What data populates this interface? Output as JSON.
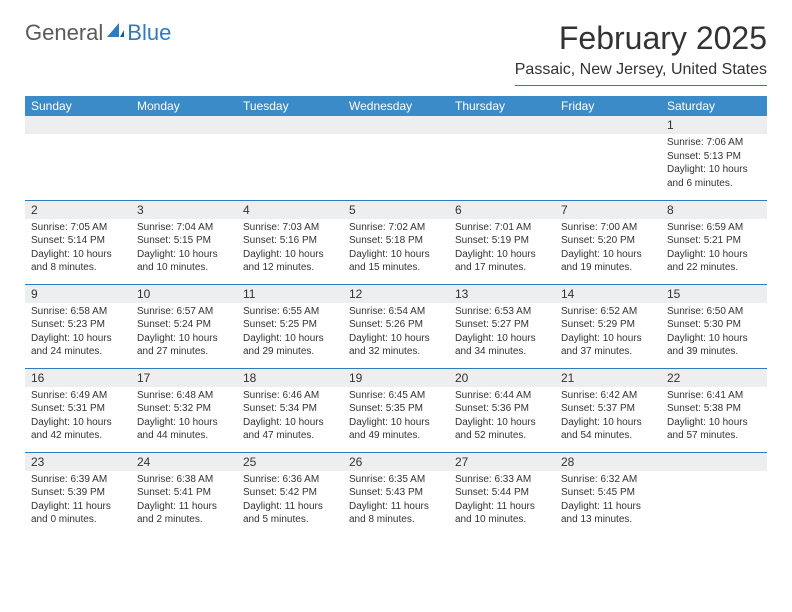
{
  "logo": {
    "text1": "General",
    "text2": "Blue"
  },
  "title": "February 2025",
  "location": "Passaic, New Jersey, United States",
  "colors": {
    "header_bg": "#3b8bc9",
    "header_text": "#ffffff",
    "rule": "#2f7bbf",
    "daynum_bg": "#eceeef",
    "text": "#333333",
    "logo_gray": "#5a5a5a",
    "logo_blue": "#2f7bbf"
  },
  "typography": {
    "title_fontsize": 32,
    "location_fontsize": 16,
    "weekday_fontsize": 12,
    "daynum_fontsize": 12,
    "body_fontsize": 10
  },
  "weekdays": [
    "Sunday",
    "Monday",
    "Tuesday",
    "Wednesday",
    "Thursday",
    "Friday",
    "Saturday"
  ],
  "weeks": [
    [
      null,
      null,
      null,
      null,
      null,
      null,
      {
        "n": "1",
        "sunrise": "7:06 AM",
        "sunset": "5:13 PM",
        "daylight": "10 hours and 6 minutes."
      }
    ],
    [
      {
        "n": "2",
        "sunrise": "7:05 AM",
        "sunset": "5:14 PM",
        "daylight": "10 hours and 8 minutes."
      },
      {
        "n": "3",
        "sunrise": "7:04 AM",
        "sunset": "5:15 PM",
        "daylight": "10 hours and 10 minutes."
      },
      {
        "n": "4",
        "sunrise": "7:03 AM",
        "sunset": "5:16 PM",
        "daylight": "10 hours and 12 minutes."
      },
      {
        "n": "5",
        "sunrise": "7:02 AM",
        "sunset": "5:18 PM",
        "daylight": "10 hours and 15 minutes."
      },
      {
        "n": "6",
        "sunrise": "7:01 AM",
        "sunset": "5:19 PM",
        "daylight": "10 hours and 17 minutes."
      },
      {
        "n": "7",
        "sunrise": "7:00 AM",
        "sunset": "5:20 PM",
        "daylight": "10 hours and 19 minutes."
      },
      {
        "n": "8",
        "sunrise": "6:59 AM",
        "sunset": "5:21 PM",
        "daylight": "10 hours and 22 minutes."
      }
    ],
    [
      {
        "n": "9",
        "sunrise": "6:58 AM",
        "sunset": "5:23 PM",
        "daylight": "10 hours and 24 minutes."
      },
      {
        "n": "10",
        "sunrise": "6:57 AM",
        "sunset": "5:24 PM",
        "daylight": "10 hours and 27 minutes."
      },
      {
        "n": "11",
        "sunrise": "6:55 AM",
        "sunset": "5:25 PM",
        "daylight": "10 hours and 29 minutes."
      },
      {
        "n": "12",
        "sunrise": "6:54 AM",
        "sunset": "5:26 PM",
        "daylight": "10 hours and 32 minutes."
      },
      {
        "n": "13",
        "sunrise": "6:53 AM",
        "sunset": "5:27 PM",
        "daylight": "10 hours and 34 minutes."
      },
      {
        "n": "14",
        "sunrise": "6:52 AM",
        "sunset": "5:29 PM",
        "daylight": "10 hours and 37 minutes."
      },
      {
        "n": "15",
        "sunrise": "6:50 AM",
        "sunset": "5:30 PM",
        "daylight": "10 hours and 39 minutes."
      }
    ],
    [
      {
        "n": "16",
        "sunrise": "6:49 AM",
        "sunset": "5:31 PM",
        "daylight": "10 hours and 42 minutes."
      },
      {
        "n": "17",
        "sunrise": "6:48 AM",
        "sunset": "5:32 PM",
        "daylight": "10 hours and 44 minutes."
      },
      {
        "n": "18",
        "sunrise": "6:46 AM",
        "sunset": "5:34 PM",
        "daylight": "10 hours and 47 minutes."
      },
      {
        "n": "19",
        "sunrise": "6:45 AM",
        "sunset": "5:35 PM",
        "daylight": "10 hours and 49 minutes."
      },
      {
        "n": "20",
        "sunrise": "6:44 AM",
        "sunset": "5:36 PM",
        "daylight": "10 hours and 52 minutes."
      },
      {
        "n": "21",
        "sunrise": "6:42 AM",
        "sunset": "5:37 PM",
        "daylight": "10 hours and 54 minutes."
      },
      {
        "n": "22",
        "sunrise": "6:41 AM",
        "sunset": "5:38 PM",
        "daylight": "10 hours and 57 minutes."
      }
    ],
    [
      {
        "n": "23",
        "sunrise": "6:39 AM",
        "sunset": "5:39 PM",
        "daylight": "11 hours and 0 minutes."
      },
      {
        "n": "24",
        "sunrise": "6:38 AM",
        "sunset": "5:41 PM",
        "daylight": "11 hours and 2 minutes."
      },
      {
        "n": "25",
        "sunrise": "6:36 AM",
        "sunset": "5:42 PM",
        "daylight": "11 hours and 5 minutes."
      },
      {
        "n": "26",
        "sunrise": "6:35 AM",
        "sunset": "5:43 PM",
        "daylight": "11 hours and 8 minutes."
      },
      {
        "n": "27",
        "sunrise": "6:33 AM",
        "sunset": "5:44 PM",
        "daylight": "11 hours and 10 minutes."
      },
      {
        "n": "28",
        "sunrise": "6:32 AM",
        "sunset": "5:45 PM",
        "daylight": "11 hours and 13 minutes."
      },
      null
    ]
  ],
  "labels": {
    "sunrise": "Sunrise:",
    "sunset": "Sunset:",
    "daylight": "Daylight:"
  }
}
